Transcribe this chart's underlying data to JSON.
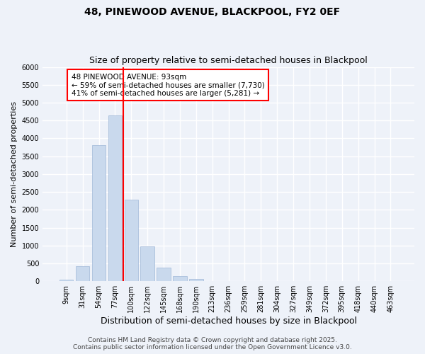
{
  "title": "48, PINEWOOD AVENUE, BLACKPOOL, FY2 0EF",
  "subtitle": "Size of property relative to semi-detached houses in Blackpool",
  "xlabel": "Distribution of semi-detached houses by size in Blackpool",
  "ylabel": "Number of semi-detached properties",
  "categories": [
    "9sqm",
    "31sqm",
    "54sqm",
    "77sqm",
    "100sqm",
    "122sqm",
    "145sqm",
    "168sqm",
    "190sqm",
    "213sqm",
    "236sqm",
    "259sqm",
    "281sqm",
    "304sqm",
    "327sqm",
    "349sqm",
    "372sqm",
    "395sqm",
    "418sqm",
    "440sqm",
    "463sqm"
  ],
  "values": [
    50,
    430,
    3820,
    4650,
    2290,
    970,
    380,
    140,
    70,
    0,
    0,
    0,
    0,
    0,
    0,
    0,
    0,
    0,
    0,
    0,
    0
  ],
  "bar_color": "#c9d9ed",
  "bar_edgecolor": "#a0b8d8",
  "vline_color": "red",
  "vline_pos": 3.5,
  "annotation_title": "48 PINEWOOD AVENUE: 93sqm",
  "annotation_line2": "← 59% of semi-detached houses are smaller (7,730)",
  "annotation_line3": "41% of semi-detached houses are larger (5,281) →",
  "annotation_box_color": "white",
  "annotation_box_edgecolor": "red",
  "ylim": [
    0,
    6000
  ],
  "yticks": [
    0,
    500,
    1000,
    1500,
    2000,
    2500,
    3000,
    3500,
    4000,
    4500,
    5000,
    5500,
    6000
  ],
  "background_color": "#eef2f9",
  "grid_color": "white",
  "footer_line1": "Contains HM Land Registry data © Crown copyright and database right 2025.",
  "footer_line2": "Contains public sector information licensed under the Open Government Licence v3.0.",
  "title_fontsize": 10,
  "subtitle_fontsize": 9,
  "xlabel_fontsize": 9,
  "ylabel_fontsize": 8,
  "tick_fontsize": 7,
  "annot_fontsize": 7.5,
  "footer_fontsize": 6.5
}
